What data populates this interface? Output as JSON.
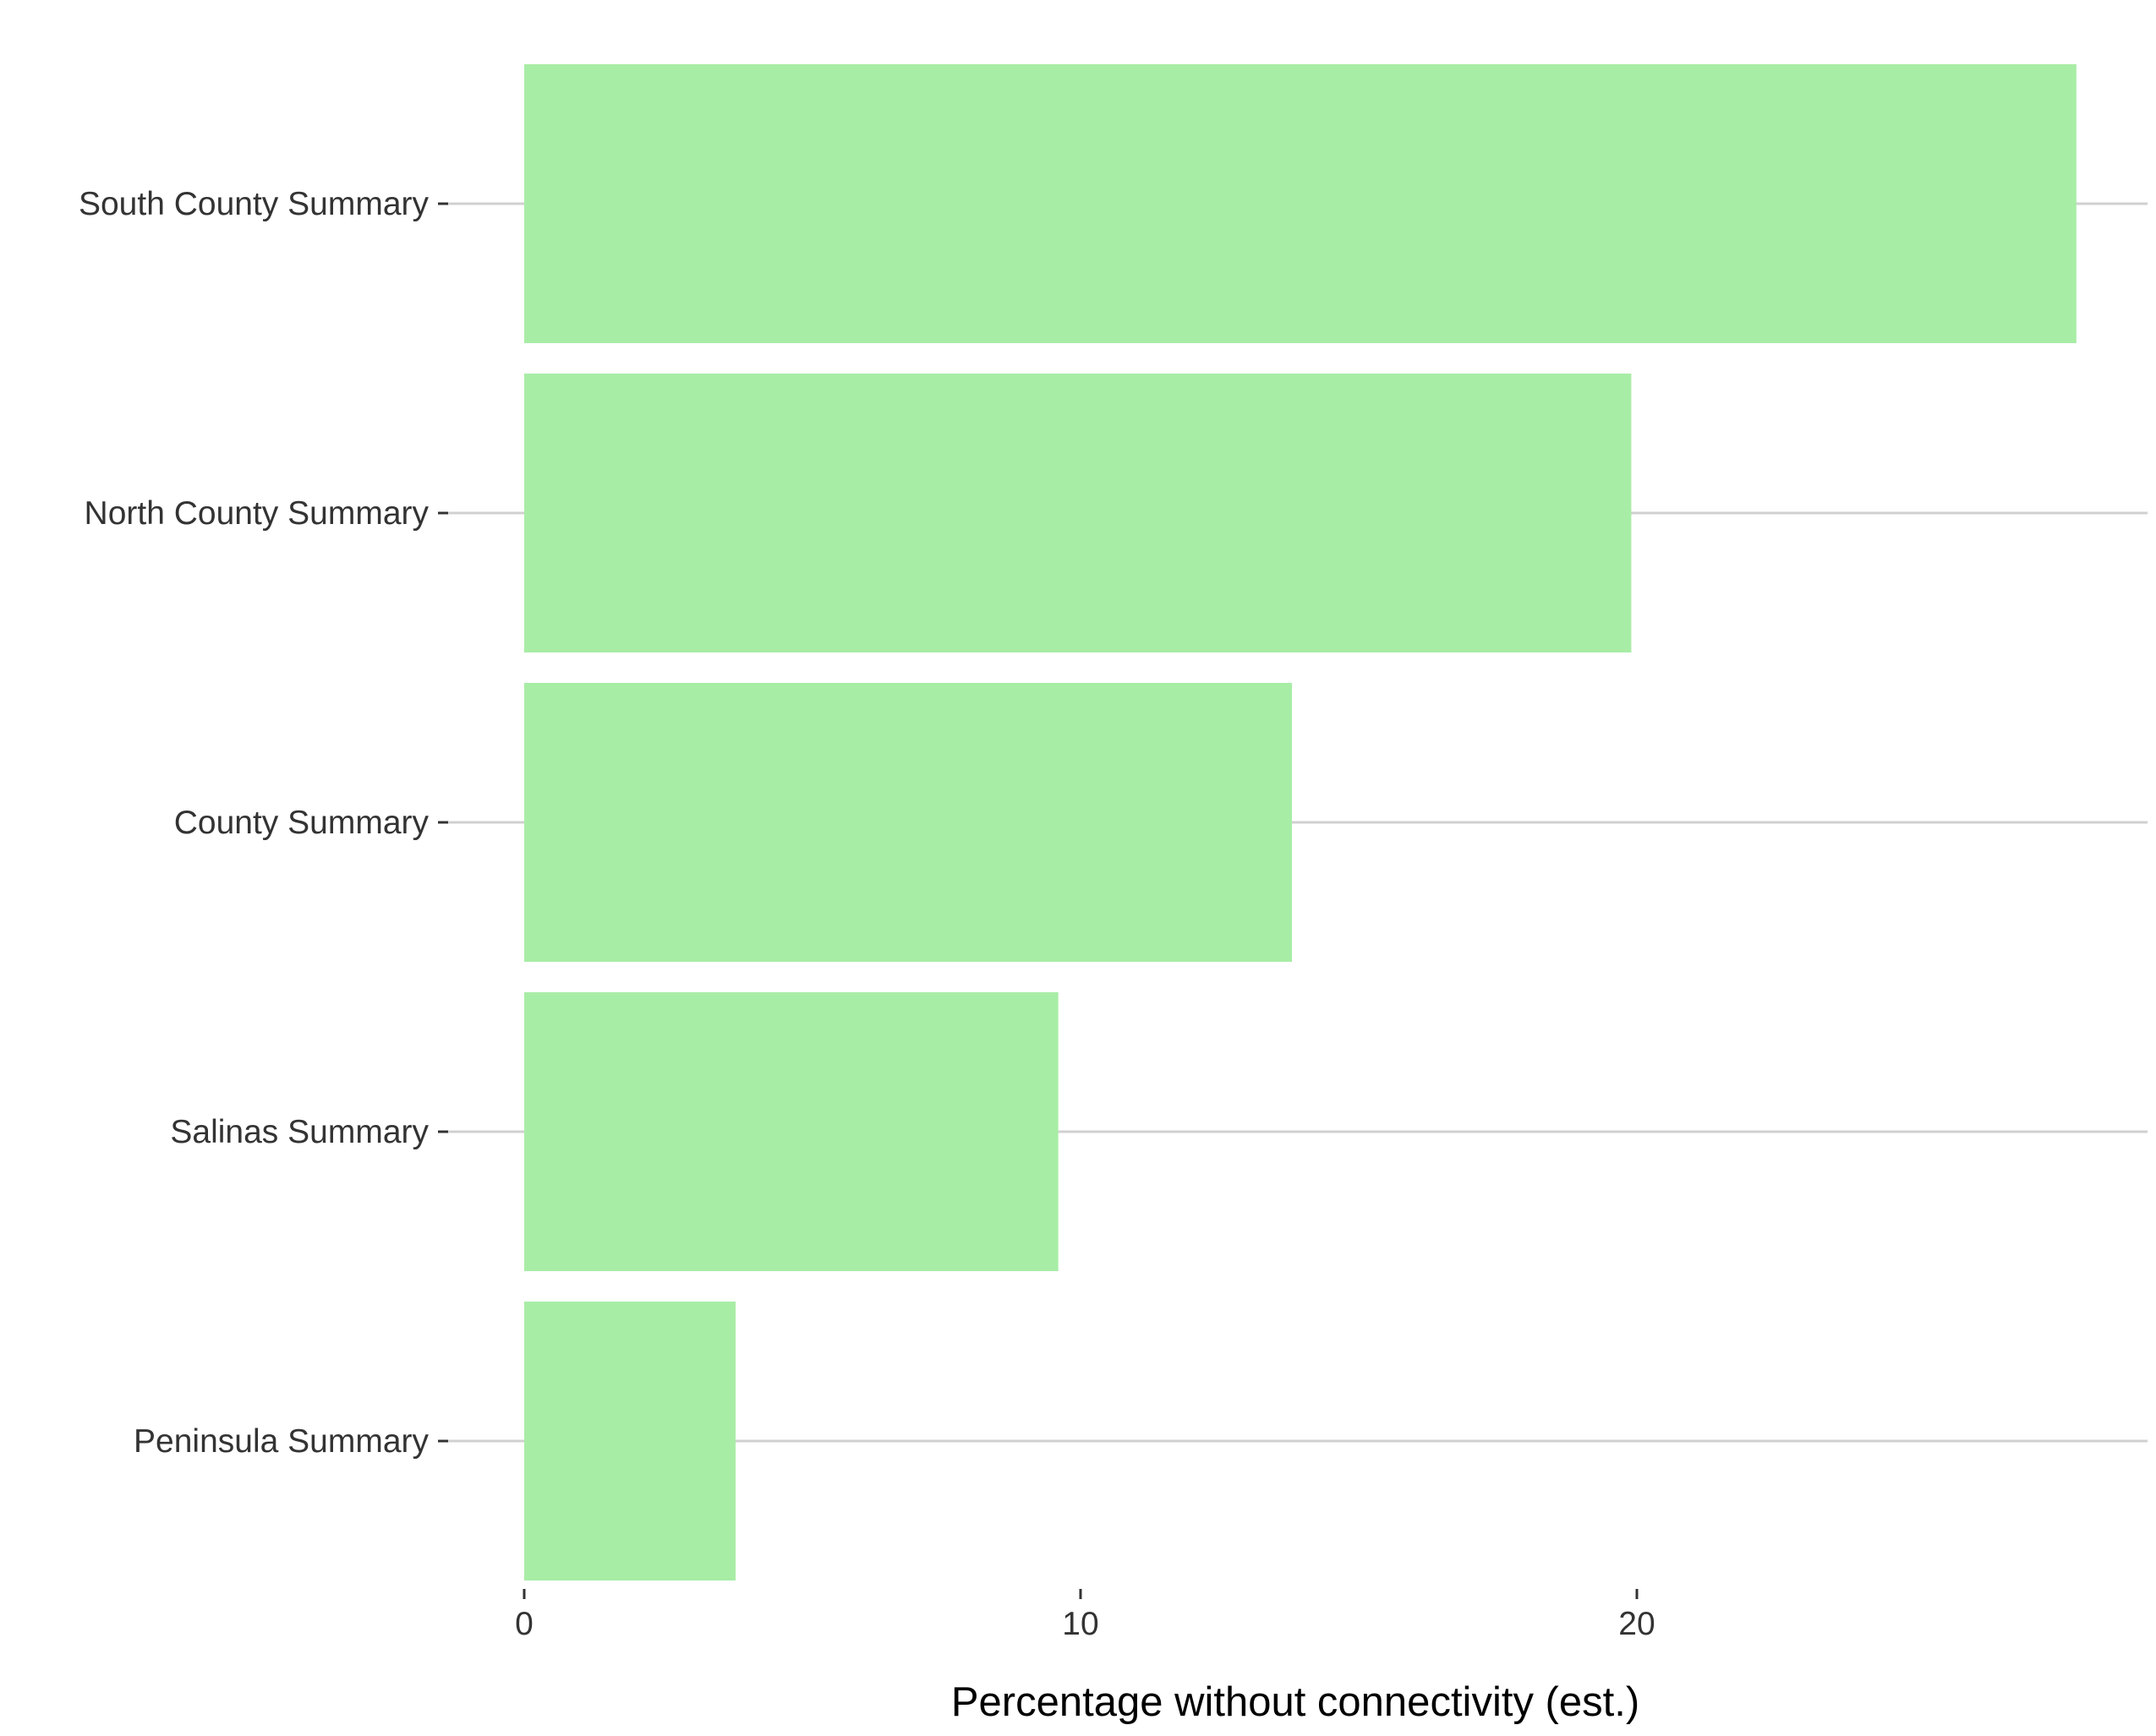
{
  "chart_data": {
    "type": "bar",
    "orientation": "horizontal",
    "categories": [
      "South County Summary",
      "North County Summary",
      "County Summary",
      "Salinas Summary",
      "Peninsula Summary"
    ],
    "values": [
      27.9,
      19.9,
      13.8,
      9.6,
      3.8
    ],
    "xlabel": "Percentage without connectivity (est.)",
    "ylabel": "",
    "xlim": [
      0,
      29.3
    ],
    "xticks": [
      0,
      10,
      20
    ],
    "grid": "horizontal major lines only",
    "legend": "none",
    "bar_color": "#a8eda6",
    "grid_color": "#d0d0d0"
  }
}
